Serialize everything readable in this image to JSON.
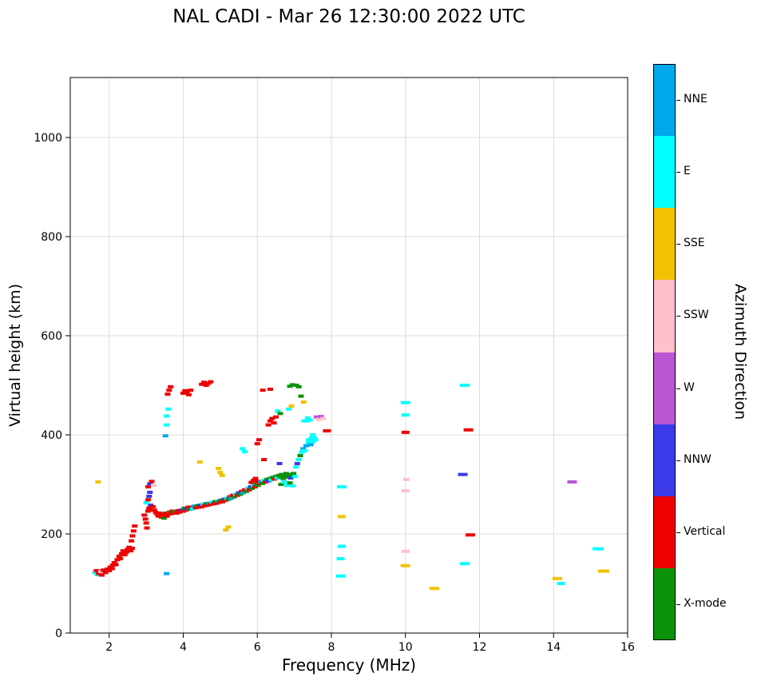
{
  "chart_data": {
    "type": "scatter",
    "title": "NAL CADI - Mar 26 12:30:00 2022 UTC",
    "xlabel": "Frequency (MHz)",
    "ylabel": "Virtual height (km)",
    "colorbar_title": "Azimuth Direction",
    "x_range": [
      0.95,
      16.0
    ],
    "y_range": [
      0,
      1121
    ],
    "x_ticks": [
      2,
      4,
      6,
      8,
      10,
      12,
      14,
      16
    ],
    "y_ticks": [
      0,
      200,
      400,
      600,
      800,
      1000
    ],
    "grid": true,
    "legend_position": "right-colorbar",
    "categories_top_to_bottom": [
      {
        "label": "NNE",
        "color": "#00a8ec"
      },
      {
        "label": "E",
        "color": "#00ffff"
      },
      {
        "label": "SSE",
        "color": "#f2c200"
      },
      {
        "label": "SSW",
        "color": "#ffc0cb"
      },
      {
        "label": "W",
        "color": "#ba55d3"
      },
      {
        "label": "NNW",
        "color": "#3a3ae8"
      },
      {
        "label": "Vertical",
        "color": "#ee0000"
      },
      {
        "label": "X-mode",
        "color": "#0a930a"
      }
    ],
    "points": [
      [
        1.62,
        122,
        "E"
      ],
      [
        1.68,
        118,
        "E"
      ],
      [
        1.66,
        126,
        "Vertical"
      ],
      [
        1.72,
        120,
        "Vertical"
      ],
      [
        1.78,
        124,
        "SSW"
      ],
      [
        1.8,
        117,
        "Vertical"
      ],
      [
        1.84,
        127,
        "Vertical"
      ],
      [
        1.9,
        122,
        "Vertical"
      ],
      [
        1.95,
        129,
        "Vertical"
      ],
      [
        2.0,
        126,
        "Vertical"
      ],
      [
        2.03,
        133,
        "Vertical"
      ],
      [
        2.08,
        130,
        "Vertical"
      ],
      [
        2.1,
        137,
        "Vertical"
      ],
      [
        2.14,
        142,
        "Vertical"
      ],
      [
        2.18,
        138,
        "Vertical"
      ],
      [
        2.22,
        148,
        "Vertical"
      ],
      [
        2.27,
        155,
        "Vertical"
      ],
      [
        2.3,
        150,
        "Vertical"
      ],
      [
        2.34,
        160,
        "Vertical"
      ],
      [
        2.38,
        166,
        "Vertical"
      ],
      [
        2.42,
        158,
        "Vertical"
      ],
      [
        2.46,
        163,
        "Vertical"
      ],
      [
        2.5,
        169,
        "Vertical"
      ],
      [
        2.54,
        173,
        "Vertical"
      ],
      [
        2.58,
        166,
        "Vertical"
      ],
      [
        2.62,
        171,
        "Vertical"
      ],
      [
        2.6,
        186,
        "Vertical"
      ],
      [
        2.63,
        196,
        "Vertical"
      ],
      [
        2.66,
        206,
        "Vertical"
      ],
      [
        2.69,
        216,
        "Vertical"
      ],
      [
        1.7,
        305,
        "SSE"
      ],
      [
        3.55,
        120,
        "NNE"
      ],
      [
        2.95,
        238,
        "Vertical"
      ],
      [
        2.98,
        230,
        "Vertical"
      ],
      [
        3.0,
        222,
        "Vertical"
      ],
      [
        3.02,
        212,
        "Vertical"
      ],
      [
        3.05,
        246,
        "Vertical"
      ],
      [
        3.08,
        252,
        "Vertical"
      ],
      [
        3.1,
        248,
        "Vertical"
      ],
      [
        3.12,
        258,
        "NNW"
      ],
      [
        3.0,
        263,
        "E"
      ],
      [
        3.05,
        269,
        "Vertical"
      ],
      [
        3.08,
        276,
        "NNW"
      ],
      [
        3.1,
        284,
        "NNW"
      ],
      [
        3.05,
        295,
        "Vertical"
      ],
      [
        3.1,
        301,
        "NNW"
      ],
      [
        3.15,
        306,
        "Vertical"
      ],
      [
        3.2,
        298,
        "SSW"
      ],
      [
        3.18,
        255,
        "Vertical"
      ],
      [
        3.22,
        248,
        "Vertical"
      ],
      [
        3.26,
        243,
        "Vertical"
      ],
      [
        3.3,
        240,
        "Vertical"
      ],
      [
        3.33,
        236,
        "Vertical"
      ],
      [
        3.36,
        242,
        "Vertical"
      ],
      [
        3.39,
        238,
        "Vertical"
      ],
      [
        3.42,
        234,
        "Vertical"
      ],
      [
        3.45,
        240,
        "Vertical"
      ],
      [
        3.48,
        232,
        "X-mode"
      ],
      [
        3.5,
        238,
        "Vertical"
      ],
      [
        3.53,
        242,
        "Vertical"
      ],
      [
        3.56,
        236,
        "Vertical"
      ],
      [
        3.6,
        240,
        "Vertical"
      ],
      [
        3.63,
        244,
        "X-mode"
      ],
      [
        3.67,
        241,
        "Vertical"
      ],
      [
        3.7,
        246,
        "Vertical"
      ],
      [
        3.74,
        243,
        "Vertical"
      ],
      [
        3.78,
        245,
        "X-mode"
      ],
      [
        3.82,
        242,
        "Vertical"
      ],
      [
        3.86,
        247,
        "Vertical"
      ],
      [
        3.9,
        244,
        "Vertical"
      ],
      [
        3.95,
        248,
        "NNW"
      ],
      [
        4.0,
        246,
        "Vertical"
      ],
      [
        4.03,
        252,
        "X-mode"
      ],
      [
        4.07,
        248,
        "Vertical"
      ],
      [
        4.1,
        251,
        "NNW"
      ],
      [
        4.14,
        254,
        "Vertical"
      ],
      [
        4.18,
        250,
        "X-mode"
      ],
      [
        4.22,
        254,
        "Vertical"
      ],
      [
        4.26,
        251,
        "E"
      ],
      [
        4.3,
        256,
        "NNE"
      ],
      [
        4.34,
        253,
        "Vertical"
      ],
      [
        4.38,
        257,
        "X-mode"
      ],
      [
        4.42,
        254,
        "Vertical"
      ],
      [
        4.46,
        258,
        "NNW"
      ],
      [
        4.5,
        255,
        "Vertical"
      ],
      [
        4.54,
        260,
        "E"
      ],
      [
        4.58,
        257,
        "Vertical"
      ],
      [
        4.62,
        261,
        "X-mode"
      ],
      [
        4.66,
        258,
        "Vertical"
      ],
      [
        4.7,
        262,
        "NNE"
      ],
      [
        4.74,
        260,
        "Vertical"
      ],
      [
        4.78,
        264,
        "E"
      ],
      [
        4.82,
        261,
        "Vertical"
      ],
      [
        4.86,
        265,
        "X-mode"
      ],
      [
        4.9,
        262,
        "Vertical"
      ],
      [
        4.94,
        266,
        "NNE"
      ],
      [
        4.98,
        264,
        "Vertical"
      ],
      [
        5.02,
        268,
        "X-mode"
      ],
      [
        5.06,
        265,
        "Vertical"
      ],
      [
        5.1,
        270,
        "NNW"
      ],
      [
        5.14,
        268,
        "Vertical"
      ],
      [
        5.18,
        272,
        "E"
      ],
      [
        5.22,
        270,
        "X-mode"
      ],
      [
        5.26,
        275,
        "Vertical"
      ],
      [
        5.3,
        272,
        "NNE"
      ],
      [
        5.34,
        278,
        "Vertical"
      ],
      [
        5.38,
        275,
        "X-mode"
      ],
      [
        5.42,
        280,
        "E"
      ],
      [
        5.46,
        278,
        "Vertical"
      ],
      [
        5.5,
        283,
        "NNW"
      ],
      [
        5.54,
        280,
        "X-mode"
      ],
      [
        5.58,
        286,
        "Vertical"
      ],
      [
        5.62,
        283,
        "NNE"
      ],
      [
        5.66,
        289,
        "Vertical"
      ],
      [
        5.7,
        286,
        "X-mode"
      ],
      [
        5.74,
        292,
        "E"
      ],
      [
        5.78,
        289,
        "Vertical"
      ],
      [
        5.82,
        295,
        "NNW"
      ],
      [
        5.86,
        292,
        "X-mode"
      ],
      [
        5.9,
        298,
        "E"
      ],
      [
        5.94,
        295,
        "Vertical"
      ],
      [
        5.98,
        300,
        "X-mode"
      ],
      [
        5.84,
        304,
        "Vertical"
      ],
      [
        5.9,
        308,
        "Vertical"
      ],
      [
        5.95,
        312,
        "Vertical"
      ],
      [
        6.0,
        306,
        "Vertical"
      ],
      [
        6.02,
        298,
        "X-mode"
      ],
      [
        6.06,
        302,
        "Vertical"
      ],
      [
        6.1,
        305,
        "NNE"
      ],
      [
        6.14,
        302,
        "X-mode"
      ],
      [
        6.18,
        308,
        "E"
      ],
      [
        6.22,
        305,
        "Vertical"
      ],
      [
        6.26,
        310,
        "X-mode"
      ],
      [
        6.3,
        307,
        "NNW"
      ],
      [
        6.34,
        312,
        "X-mode"
      ],
      [
        6.38,
        309,
        "E"
      ],
      [
        6.42,
        314,
        "X-mode"
      ],
      [
        6.46,
        311,
        "Vertical"
      ],
      [
        6.5,
        316,
        "X-mode"
      ],
      [
        6.54,
        313,
        "E"
      ],
      [
        6.58,
        318,
        "X-mode"
      ],
      [
        6.62,
        315,
        "X-mode"
      ],
      [
        6.66,
        320,
        "X-mode"
      ],
      [
        6.7,
        312,
        "X-mode"
      ],
      [
        6.74,
        318,
        "X-mode"
      ],
      [
        6.78,
        322,
        "X-mode"
      ],
      [
        6.82,
        315,
        "X-mode"
      ],
      [
        6.86,
        320,
        "X-mode"
      ],
      [
        6.9,
        313,
        "NNW"
      ],
      [
        6.94,
        318,
        "X-mode"
      ],
      [
        6.98,
        322,
        "X-mode"
      ],
      [
        7.02,
        316,
        "E"
      ],
      [
        6.64,
        300,
        "X-mode"
      ],
      [
        6.72,
        305,
        "E"
      ],
      [
        6.8,
        298,
        "E"
      ],
      [
        6.88,
        303,
        "X-mode"
      ],
      [
        6.96,
        297,
        "E"
      ],
      [
        7.04,
        335,
        "E"
      ],
      [
        7.08,
        342,
        "NNW"
      ],
      [
        7.12,
        350,
        "E"
      ],
      [
        7.16,
        358,
        "X-mode"
      ],
      [
        7.2,
        365,
        "E"
      ],
      [
        7.24,
        372,
        "NNE"
      ],
      [
        7.28,
        368,
        "E"
      ],
      [
        7.32,
        378,
        "NNE"
      ],
      [
        7.38,
        384,
        "E"
      ],
      [
        7.42,
        390,
        "E",
        10
      ],
      [
        7.46,
        386,
        "E",
        10
      ],
      [
        7.5,
        394,
        "E",
        10
      ],
      [
        7.54,
        390,
        "E",
        10
      ],
      [
        7.5,
        400,
        "E"
      ],
      [
        7.44,
        380,
        "NNE"
      ],
      [
        3.52,
        398,
        "NNE"
      ],
      [
        3.55,
        420,
        "E"
      ],
      [
        3.55,
        438,
        "E"
      ],
      [
        3.6,
        452,
        "E"
      ],
      [
        3.58,
        482,
        "Vertical"
      ],
      [
        3.62,
        490,
        "Vertical"
      ],
      [
        3.66,
        497,
        "Vertical"
      ],
      [
        4.0,
        484,
        "Vertical"
      ],
      [
        4.05,
        489,
        "Vertical"
      ],
      [
        4.1,
        486,
        "Vertical"
      ],
      [
        4.15,
        481,
        "Vertical"
      ],
      [
        4.2,
        490,
        "Vertical"
      ],
      [
        4.5,
        502,
        "Vertical"
      ],
      [
        4.56,
        506,
        "Vertical"
      ],
      [
        4.62,
        500,
        "Vertical"
      ],
      [
        4.68,
        504,
        "Vertical"
      ],
      [
        4.74,
        507,
        "Vertical"
      ],
      [
        4.45,
        345,
        "SSE"
      ],
      [
        4.95,
        332,
        "SSE"
      ],
      [
        5.0,
        324,
        "SSE"
      ],
      [
        5.05,
        318,
        "SSE"
      ],
      [
        5.15,
        208,
        "SSE"
      ],
      [
        5.22,
        214,
        "SSE"
      ],
      [
        5.6,
        372,
        "E"
      ],
      [
        5.66,
        366,
        "E"
      ],
      [
        6.0,
        382,
        "Vertical"
      ],
      [
        6.05,
        390,
        "Vertical"
      ],
      [
        6.18,
        350,
        "Vertical"
      ],
      [
        6.15,
        490,
        "Vertical"
      ],
      [
        6.35,
        492,
        "Vertical"
      ],
      [
        6.3,
        420,
        "Vertical"
      ],
      [
        6.35,
        428,
        "Vertical"
      ],
      [
        6.4,
        433,
        "Vertical"
      ],
      [
        6.45,
        424,
        "Vertical"
      ],
      [
        6.5,
        436,
        "Vertical"
      ],
      [
        6.55,
        448,
        "E"
      ],
      [
        6.62,
        443,
        "X-mode"
      ],
      [
        6.6,
        342,
        "NNW"
      ],
      [
        6.85,
        452,
        "E"
      ],
      [
        6.92,
        458,
        "SSE"
      ],
      [
        7.25,
        466,
        "SSE"
      ],
      [
        6.88,
        498,
        "X-mode"
      ],
      [
        6.95,
        501,
        "X-mode"
      ],
      [
        7.05,
        500,
        "X-mode"
      ],
      [
        7.12,
        497,
        "X-mode"
      ],
      [
        7.18,
        478,
        "X-mode"
      ],
      [
        7.3,
        428,
        "E",
        10
      ],
      [
        7.36,
        434,
        "E"
      ],
      [
        7.42,
        430,
        "E"
      ],
      [
        7.6,
        436,
        "W"
      ],
      [
        7.66,
        431,
        "SSW"
      ],
      [
        7.72,
        437,
        "W"
      ],
      [
        7.78,
        433,
        "SSW"
      ],
      [
        7.88,
        408,
        "Vertical",
        10
      ],
      [
        8.28,
        295,
        "E",
        12
      ],
      [
        8.28,
        235,
        "SSE",
        10
      ],
      [
        8.28,
        175,
        "E",
        10
      ],
      [
        8.25,
        150,
        "E",
        10
      ],
      [
        8.25,
        115,
        "E",
        12
      ],
      [
        10.0,
        465,
        "E",
        12
      ],
      [
        10.0,
        440,
        "E",
        10
      ],
      [
        10.0,
        405,
        "Vertical",
        10
      ],
      [
        10.02,
        310,
        "SSW",
        8
      ],
      [
        10.0,
        287,
        "SSW",
        10
      ],
      [
        10.0,
        165,
        "SSW",
        10
      ],
      [
        10.0,
        136,
        "SSE",
        12
      ],
      [
        10.78,
        90,
        "SSE",
        12
      ],
      [
        11.6,
        500,
        "E",
        12
      ],
      [
        11.7,
        410,
        "Vertical",
        12
      ],
      [
        11.55,
        320,
        "NNW",
        12
      ],
      [
        11.75,
        198,
        "Vertical",
        12
      ],
      [
        11.6,
        140,
        "E",
        12
      ],
      [
        14.1,
        110,
        "SSE",
        12
      ],
      [
        14.2,
        100,
        "E",
        10
      ],
      [
        14.5,
        305,
        "W",
        12
      ],
      [
        15.2,
        170,
        "E",
        14
      ],
      [
        15.35,
        125,
        "SSE",
        14
      ]
    ]
  }
}
